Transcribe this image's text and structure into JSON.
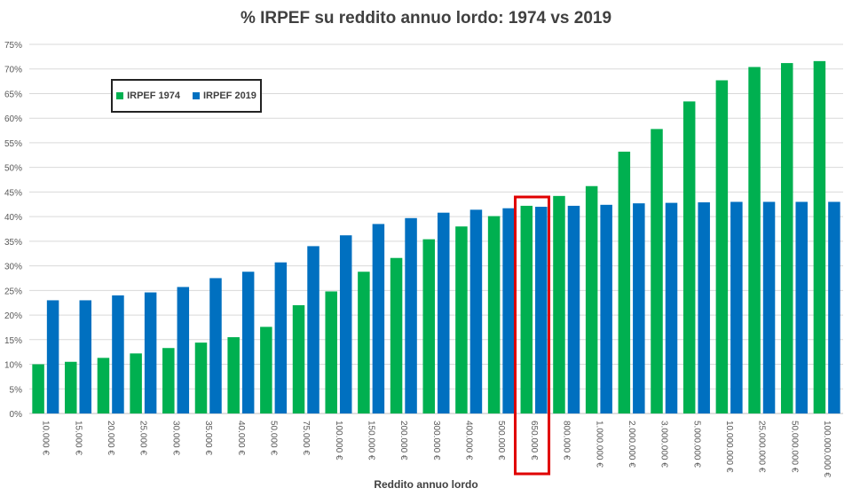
{
  "chart_data": {
    "type": "bar",
    "title": "% IRPEF su reddito annuo lordo: 1974 vs 2019",
    "xlabel": "Reddito annuo lordo",
    "ylabel": "",
    "ylim": [
      0,
      75
    ],
    "y_ticks": [
      "0%",
      "5%",
      "10%",
      "15%",
      "20%",
      "25%",
      "30%",
      "35%",
      "40%",
      "45%",
      "50%",
      "55%",
      "60%",
      "65%",
      "70%",
      "75%"
    ],
    "categories": [
      "10.000 €",
      "15.000 €",
      "20.000 €",
      "25.000 €",
      "30.000 €",
      "35.000 €",
      "40.000 €",
      "50.000 €",
      "75.000 €",
      "100.000 €",
      "150.000 €",
      "200.000 €",
      "300.000 €",
      "400.000 €",
      "500.000 €",
      "650.000 €",
      "800.000 €",
      "1.000.000 €",
      "2.000.000 €",
      "3.000.000 €",
      "5.000.000 €",
      "10.000.000 €",
      "25.000.000 €",
      "50.000.000 €",
      "100.000.000 €"
    ],
    "series": [
      {
        "name": "IRPEF 1974",
        "color": "#00b050",
        "values": [
          10.0,
          10.5,
          11.3,
          12.2,
          13.3,
          14.4,
          15.5,
          17.6,
          22.0,
          24.8,
          28.8,
          31.6,
          35.4,
          38.0,
          40.1,
          42.2,
          44.2,
          46.2,
          53.2,
          57.8,
          63.4,
          67.7,
          70.4,
          71.2,
          71.6
        ]
      },
      {
        "name": "IRPEF 2019",
        "color": "#0070c0",
        "values": [
          23.0,
          23.0,
          24.0,
          24.6,
          25.7,
          27.5,
          28.8,
          30.7,
          34.0,
          36.2,
          38.5,
          39.7,
          40.8,
          41.4,
          41.7,
          42.0,
          42.2,
          42.4,
          42.7,
          42.8,
          42.9,
          43.0,
          43.0,
          43.0,
          43.0
        ]
      }
    ],
    "grid": true,
    "legend_position": "top-left",
    "highlight_category": "650.000 €",
    "highlight_color": "#e00000"
  }
}
